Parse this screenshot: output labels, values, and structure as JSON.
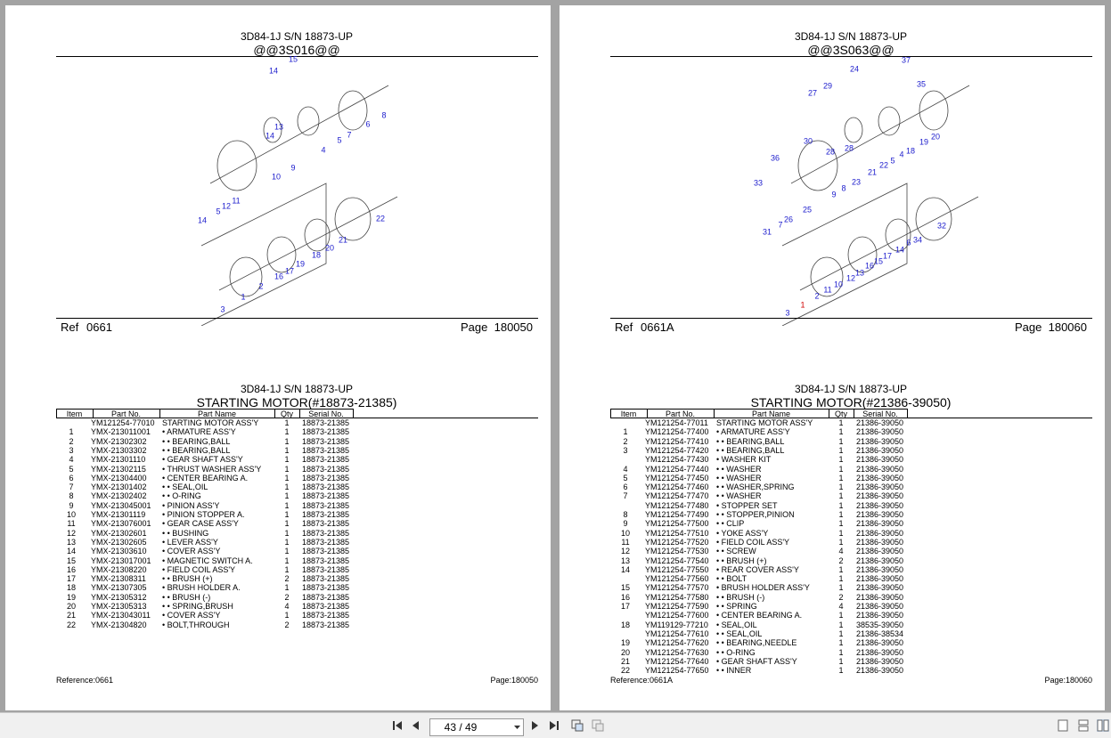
{
  "pages": [
    {
      "header_line1": "3D84-1J S/N 18873-UP",
      "header_code": "@@3S016@@",
      "callouts": [
        "15",
        "14",
        "13",
        "14",
        "5",
        "7",
        "6",
        "8",
        "4",
        "9",
        "10",
        "11",
        "12",
        "5",
        "14",
        "22",
        "21",
        "20",
        "18",
        "19",
        "17",
        "16",
        "2",
        "1",
        "3"
      ],
      "ref_label": "Ref",
      "ref": "0661",
      "page_label": "Page",
      "page": "180050",
      "section_title": "3D84-1J S/N 18873-UP",
      "section_subtitle": "STARTING MOTOR(#18873-21385)",
      "table": {
        "columns": [
          "Item",
          "Part No.",
          "Part Name",
          "Qty",
          "Serial No."
        ],
        "rows": [
          [
            null,
            "YM121254-77010",
            "STARTING MOTOR ASS'Y",
            "1",
            "18873-21385"
          ],
          [
            "1",
            "YMX-213011001",
            "• ARMATURE ASS'Y",
            "1",
            "18873-21385"
          ],
          [
            "2",
            "YMX-21302302",
            "• • BEARING,BALL",
            "1",
            "18873-21385"
          ],
          [
            "3",
            "YMX-21303302",
            "• • BEARING,BALL",
            "1",
            "18873-21385"
          ],
          [
            "4",
            "YMX-21301110",
            "• GEAR SHAFT ASS'Y",
            "1",
            "18873-21385"
          ],
          [
            "5",
            "YMX-21302115",
            "• THRUST WASHER ASS'Y",
            "1",
            "18873-21385"
          ],
          [
            "6",
            "YMX-21304400",
            "• CENTER BEARING A.",
            "1",
            "18873-21385"
          ],
          [
            "7",
            "YMX-21301402",
            "• • SEAL,OIL",
            "1",
            "18873-21385"
          ],
          [
            "8",
            "YMX-21302402",
            "• • O-RING",
            "1",
            "18873-21385"
          ],
          [
            "9",
            "YMX-213045001",
            "• PINION ASS'Y",
            "1",
            "18873-21385"
          ],
          [
            "10",
            "YMX-21301119",
            "• PINION STOPPER A.",
            "1",
            "18873-21385"
          ],
          [
            "11",
            "YMX-213076001",
            "• GEAR CASE ASS'Y",
            "1",
            "18873-21385"
          ],
          [
            "12",
            "YMX-21302601",
            "• • BUSHING",
            "1",
            "18873-21385"
          ],
          [
            "13",
            "YMX-21302605",
            "• LEVER ASS'Y",
            "1",
            "18873-21385"
          ],
          [
            "14",
            "YMX-21303610",
            "• COVER ASS'Y",
            "1",
            "18873-21385"
          ],
          [
            "15",
            "YMX-213017001",
            "• MAGNETIC SWITCH A.",
            "1",
            "18873-21385"
          ],
          [
            "16",
            "YMX-21308220",
            "• FIELD COIL ASS'Y",
            "1",
            "18873-21385"
          ],
          [
            "17",
            "YMX-21308311",
            "• • BRUSH (+)",
            "2",
            "18873-21385"
          ],
          [
            "18",
            "YMX-21307305",
            "• BRUSH HOLDER A.",
            "1",
            "18873-21385"
          ],
          [
            "19",
            "YMX-21305312",
            "• • BRUSH (-)",
            "2",
            "18873-21385"
          ],
          [
            "20",
            "YMX-21305313",
            "• • SPRING,BRUSH",
            "4",
            "18873-21385"
          ],
          [
            "21",
            "YMX-213043011",
            "• COVER ASS'Y",
            "1",
            "18873-21385"
          ],
          [
            "22",
            "YMX-21304820",
            "• BOLT,THROUGH",
            "2",
            "18873-21385"
          ]
        ]
      },
      "reference_footer": "Reference:0661",
      "page_footer": "Page:180050"
    },
    {
      "header_line1": "3D84-1J S/N 18873-UP",
      "header_code": "@@3S063@@",
      "callouts": [
        "37",
        "24",
        "29",
        "35",
        "27",
        "30",
        "28",
        "28",
        "36",
        "20",
        "19",
        "18",
        "4",
        "5",
        "22",
        "21",
        "23",
        "8",
        "9",
        "33",
        "25",
        "26",
        "7",
        "31",
        "32",
        "34",
        "6",
        "14",
        "17",
        "15",
        "16",
        "13",
        "12",
        "10",
        "11",
        "2",
        "1",
        "3"
      ],
      "ref_label": "Ref",
      "ref": "0661A",
      "page_label": "Page",
      "page": "180060",
      "section_title": "3D84-1J S/N 18873-UP",
      "section_subtitle": "STARTING MOTOR(#21386-39050)",
      "table": {
        "columns": [
          "Item",
          "Part No.",
          "Part Name",
          "Qty",
          "Serial No."
        ],
        "rows": [
          [
            null,
            "YM121254-77011",
            "STARTING MOTOR ASS'Y",
            "1",
            "21386-39050"
          ],
          [
            "1",
            "YM121254-77400",
            "• ARMATURE ASS'Y",
            "1",
            "21386-39050"
          ],
          [
            "2",
            "YM121254-77410",
            "• • BEARING,BALL",
            "1",
            "21386-39050"
          ],
          [
            "3",
            "YM121254-77420",
            "• • BEARING,BALL",
            "1",
            "21386-39050"
          ],
          [
            null,
            "YM121254-77430",
            "• WASHER KIT",
            "1",
            "21386-39050"
          ],
          [
            "4",
            "YM121254-77440",
            "• • WASHER",
            "1",
            "21386-39050"
          ],
          [
            "5",
            "YM121254-77450",
            "• • WASHER",
            "1",
            "21386-39050"
          ],
          [
            "6",
            "YM121254-77460",
            "• • WASHER,SPRING",
            "1",
            "21386-39050"
          ],
          [
            "7",
            "YM121254-77470",
            "• • WASHER",
            "1",
            "21386-39050"
          ],
          [
            null,
            "YM121254-77480",
            "• STOPPER SET",
            "1",
            "21386-39050"
          ],
          [
            "8",
            "YM121254-77490",
            "• • STOPPER,PINION",
            "1",
            "21386-39050"
          ],
          [
            "9",
            "YM121254-77500",
            "• • CLIP",
            "1",
            "21386-39050"
          ],
          [
            "10",
            "YM121254-77510",
            "• YOKE ASS'Y",
            "1",
            "21386-39050"
          ],
          [
            "11",
            "YM121254-77520",
            "• FIELD COIL ASS'Y",
            "1",
            "21386-39050"
          ],
          [
            "12",
            "YM121254-77530",
            "• • SCREW",
            "4",
            "21386-39050"
          ],
          [
            "13",
            "YM121254-77540",
            "• • BRUSH (+)",
            "2",
            "21386-39050"
          ],
          [
            "14",
            "YM121254-77550",
            "• REAR COVER ASS'Y",
            "1",
            "21386-39050"
          ],
          [
            null,
            "YM121254-77560",
            "• • BOLT",
            "1",
            "21386-39050"
          ],
          [
            "15",
            "YM121254-77570",
            "• BRUSH HOLDER ASS'Y",
            "1",
            "21386-39050"
          ],
          [
            "16",
            "YM121254-77580",
            "• • BRUSH (-)",
            "2",
            "21386-39050"
          ],
          [
            "17",
            "YM121254-77590",
            "• • SPRING",
            "4",
            "21386-39050"
          ],
          [
            null,
            "YM121254-77600",
            "• CENTER BEARING A.",
            "1",
            "21386-39050"
          ],
          [
            "18",
            "YM119129-77210",
            "• SEAL,OIL",
            "1",
            "38535-39050"
          ],
          [
            null,
            "YM121254-77610",
            "• • SEAL,OIL",
            "1",
            "21386-38534"
          ],
          [
            "19",
            "YM121254-77620",
            "• • BEARING,NEEDLE",
            "1",
            "21386-39050"
          ],
          [
            "20",
            "YM121254-77630",
            "• • O-RING",
            "1",
            "21386-39050"
          ],
          [
            "21",
            "YM121254-77640",
            "• GEAR SHAFT ASS'Y",
            "1",
            "21386-39050"
          ],
          [
            "22",
            "YM121254-77650",
            "• • INNER",
            "1",
            "21386-39050"
          ]
        ]
      },
      "reference_footer": "Reference:0661A",
      "page_footer": "Page:180060"
    }
  ],
  "toolbar": {
    "page_indicator": "43 / 49"
  }
}
